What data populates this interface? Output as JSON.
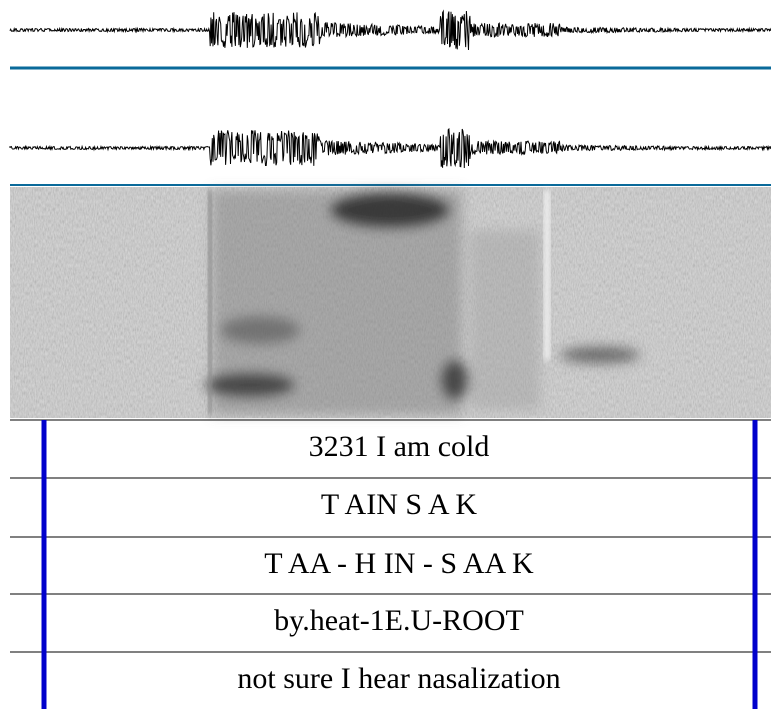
{
  "tiers": [
    "3231 I am cold",
    "T AIN S A K",
    "T AA - H IN - S AA K",
    "by.heat-1E.U-ROOT",
    "not sure I hear nasalization"
  ]
}
